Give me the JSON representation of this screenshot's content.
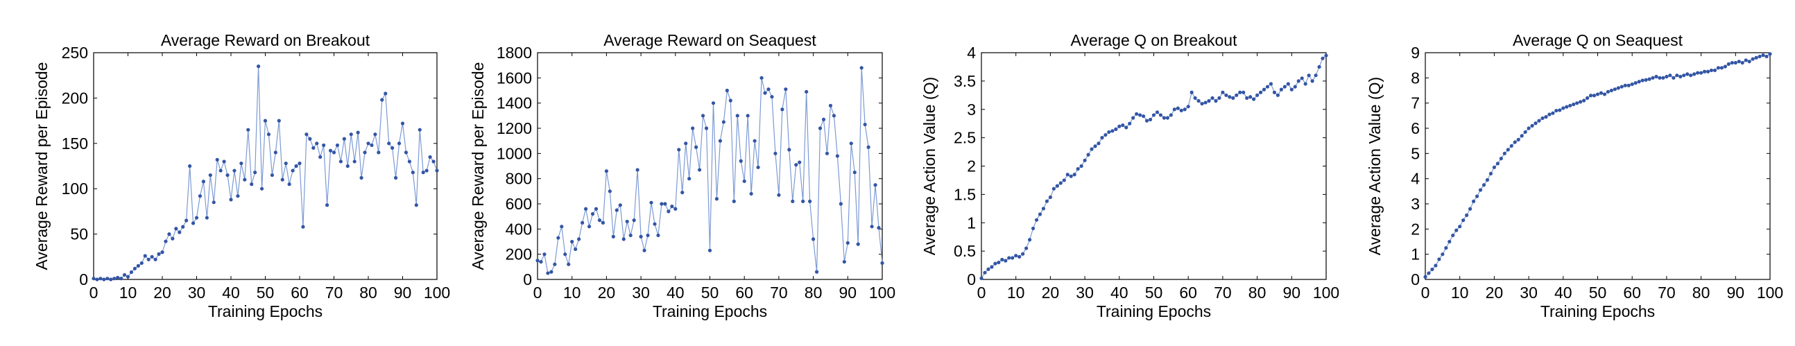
{
  "chart_data": [
    {
      "type": "line",
      "title": "Average Reward on Breakout",
      "xlabel": "Training Epochs",
      "ylabel": "Average Reward per Episode",
      "xlim": [
        0,
        100
      ],
      "ylim": [
        0,
        250
      ],
      "xticks": [
        0,
        10,
        20,
        30,
        40,
        50,
        60,
        70,
        80,
        90,
        100
      ],
      "yticks": [
        0,
        50,
        100,
        150,
        200,
        250
      ],
      "grid": false,
      "series": [
        {
          "color": "#3355a4",
          "x": [
            0,
            1,
            2,
            3,
            4,
            5,
            6,
            7,
            8,
            9,
            10,
            11,
            12,
            13,
            14,
            15,
            16,
            17,
            18,
            19,
            20,
            21,
            22,
            23,
            24,
            25,
            26,
            27,
            28,
            29,
            30,
            31,
            32,
            33,
            34,
            35,
            36,
            37,
            38,
            39,
            40,
            41,
            42,
            43,
            44,
            45,
            46,
            47,
            48,
            49,
            50,
            51,
            52,
            53,
            54,
            55,
            56,
            57,
            58,
            59,
            60,
            61,
            62,
            63,
            64,
            65,
            66,
            67,
            68,
            69,
            70,
            71,
            72,
            73,
            74,
            75,
            76,
            77,
            78,
            79,
            80,
            81,
            82,
            83,
            84,
            85,
            86,
            87,
            88,
            89,
            90,
            91,
            92,
            93,
            94,
            95,
            96,
            97,
            98,
            99,
            100
          ],
          "y": [
            1,
            0,
            1,
            0,
            1,
            0,
            1,
            2,
            1,
            5,
            3,
            8,
            12,
            15,
            18,
            26,
            22,
            25,
            22,
            28,
            30,
            42,
            50,
            45,
            56,
            52,
            58,
            65,
            125,
            62,
            68,
            92,
            108,
            68,
            115,
            85,
            132,
            120,
            130,
            115,
            88,
            120,
            92,
            128,
            110,
            165,
            105,
            118,
            235,
            100,
            175,
            160,
            115,
            140,
            175,
            110,
            128,
            105,
            120,
            125,
            128,
            58,
            160,
            155,
            145,
            150,
            135,
            148,
            82,
            142,
            140,
            148,
            130,
            155,
            125,
            160,
            130,
            162,
            112,
            140,
            150,
            148,
            160,
            140,
            198,
            205,
            150,
            145,
            112,
            150,
            172,
            140,
            130,
            118,
            82,
            165,
            118,
            120,
            135,
            130,
            120
          ]
        }
      ]
    },
    {
      "type": "line",
      "title": "Average Reward on Seaquest",
      "xlabel": "Training Epochs",
      "ylabel": "Average Reward per Episode",
      "xlim": [
        0,
        100
      ],
      "ylim": [
        0,
        1800
      ],
      "xticks": [
        0,
        10,
        20,
        30,
        40,
        50,
        60,
        70,
        80,
        90,
        100
      ],
      "yticks": [
        0,
        200,
        400,
        600,
        800,
        1000,
        1200,
        1400,
        1600,
        1800
      ],
      "grid": false,
      "series": [
        {
          "color": "#3355a4",
          "x": [
            0,
            1,
            2,
            3,
            4,
            5,
            6,
            7,
            8,
            9,
            10,
            11,
            12,
            13,
            14,
            15,
            16,
            17,
            18,
            19,
            20,
            21,
            22,
            23,
            24,
            25,
            26,
            27,
            28,
            29,
            30,
            31,
            32,
            33,
            34,
            35,
            36,
            37,
            38,
            39,
            40,
            41,
            42,
            43,
            44,
            45,
            46,
            47,
            48,
            49,
            50,
            51,
            52,
            53,
            54,
            55,
            56,
            57,
            58,
            59,
            60,
            61,
            62,
            63,
            64,
            65,
            66,
            67,
            68,
            69,
            70,
            71,
            72,
            73,
            74,
            75,
            76,
            77,
            78,
            79,
            80,
            81,
            82,
            83,
            84,
            85,
            86,
            87,
            88,
            89,
            90,
            91,
            92,
            93,
            94,
            95,
            96,
            97,
            98,
            99,
            100
          ],
          "y": [
            150,
            140,
            200,
            50,
            60,
            120,
            330,
            420,
            200,
            120,
            300,
            240,
            320,
            450,
            560,
            420,
            520,
            560,
            470,
            450,
            860,
            700,
            340,
            550,
            590,
            320,
            460,
            350,
            470,
            870,
            340,
            230,
            350,
            610,
            440,
            350,
            600,
            600,
            540,
            580,
            560,
            1030,
            690,
            1080,
            800,
            1200,
            1050,
            870,
            1300,
            1200,
            230,
            1400,
            640,
            1100,
            1250,
            1500,
            1420,
            620,
            1300,
            940,
            780,
            1300,
            680,
            1100,
            890,
            1600,
            1480,
            1510,
            1450,
            1000,
            670,
            1350,
            1510,
            1030,
            620,
            910,
            930,
            620,
            1490,
            620,
            320,
            60,
            1200,
            1270,
            1000,
            1380,
            1300,
            980,
            600,
            140,
            290,
            1080,
            850,
            280,
            1680,
            1230,
            1050,
            420,
            750,
            410,
            130
          ]
        }
      ]
    },
    {
      "type": "line",
      "title": "Average Q on Breakout",
      "xlabel": "Training Epochs",
      "ylabel": "Average Action Value (Q)",
      "xlim": [
        0,
        100
      ],
      "ylim": [
        0,
        4
      ],
      "xticks": [
        0,
        10,
        20,
        30,
        40,
        50,
        60,
        70,
        80,
        90,
        100
      ],
      "yticks": [
        0,
        0.5,
        1,
        1.5,
        2,
        2.5,
        3,
        3.5,
        4
      ],
      "grid": false,
      "series": [
        {
          "color": "#3355a4",
          "x": [
            0,
            1,
            2,
            3,
            4,
            5,
            6,
            7,
            8,
            9,
            10,
            11,
            12,
            13,
            14,
            15,
            16,
            17,
            18,
            19,
            20,
            21,
            22,
            23,
            24,
            25,
            26,
            27,
            28,
            29,
            30,
            31,
            32,
            33,
            34,
            35,
            36,
            37,
            38,
            39,
            40,
            41,
            42,
            43,
            44,
            45,
            46,
            47,
            48,
            49,
            50,
            51,
            52,
            53,
            54,
            55,
            56,
            57,
            58,
            59,
            60,
            61,
            62,
            63,
            64,
            65,
            66,
            67,
            68,
            69,
            70,
            71,
            72,
            73,
            74,
            75,
            76,
            77,
            78,
            79,
            80,
            81,
            82,
            83,
            84,
            85,
            86,
            87,
            88,
            89,
            90,
            91,
            92,
            93,
            94,
            95,
            96,
            97,
            98,
            99,
            100
          ],
          "y": [
            0.02,
            0.12,
            0.18,
            0.22,
            0.28,
            0.3,
            0.35,
            0.33,
            0.38,
            0.38,
            0.42,
            0.4,
            0.45,
            0.55,
            0.7,
            0.9,
            1.05,
            1.15,
            1.25,
            1.38,
            1.45,
            1.6,
            1.65,
            1.7,
            1.75,
            1.85,
            1.82,
            1.85,
            1.95,
            2.0,
            2.1,
            2.2,
            2.3,
            2.35,
            2.4,
            2.5,
            2.55,
            2.6,
            2.62,
            2.65,
            2.7,
            2.72,
            2.68,
            2.75,
            2.85,
            2.92,
            2.9,
            2.88,
            2.8,
            2.82,
            2.9,
            2.95,
            2.9,
            2.85,
            2.85,
            2.9,
            3.0,
            3.02,
            2.98,
            3.0,
            3.05,
            3.3,
            3.2,
            3.15,
            3.1,
            3.12,
            3.15,
            3.2,
            3.15,
            3.2,
            3.3,
            3.25,
            3.22,
            3.2,
            3.25,
            3.3,
            3.3,
            3.2,
            3.22,
            3.18,
            3.25,
            3.3,
            3.35,
            3.4,
            3.45,
            3.3,
            3.25,
            3.35,
            3.4,
            3.45,
            3.35,
            3.4,
            3.5,
            3.55,
            3.45,
            3.6,
            3.5,
            3.6,
            3.75,
            3.9,
            3.95
          ]
        }
      ]
    },
    {
      "type": "line",
      "title": "Average Q on Seaquest",
      "xlabel": "Training Epochs",
      "ylabel": "Average Action Value (Q)",
      "xlim": [
        0,
        100
      ],
      "ylim": [
        0,
        9
      ],
      "xticks": [
        0,
        10,
        20,
        30,
        40,
        50,
        60,
        70,
        80,
        90,
        100
      ],
      "yticks": [
        0,
        1,
        2,
        3,
        4,
        5,
        6,
        7,
        8,
        9
      ],
      "grid": false,
      "series": [
        {
          "color": "#3355a4",
          "x": [
            0,
            1,
            2,
            3,
            4,
            5,
            6,
            7,
            8,
            9,
            10,
            11,
            12,
            13,
            14,
            15,
            16,
            17,
            18,
            19,
            20,
            21,
            22,
            23,
            24,
            25,
            26,
            27,
            28,
            29,
            30,
            31,
            32,
            33,
            34,
            35,
            36,
            37,
            38,
            39,
            40,
            41,
            42,
            43,
            44,
            45,
            46,
            47,
            48,
            49,
            50,
            51,
            52,
            53,
            54,
            55,
            56,
            57,
            58,
            59,
            60,
            61,
            62,
            63,
            64,
            65,
            66,
            67,
            68,
            69,
            70,
            71,
            72,
            73,
            74,
            75,
            76,
            77,
            78,
            79,
            80,
            81,
            82,
            83,
            84,
            85,
            86,
            87,
            88,
            89,
            90,
            91,
            92,
            93,
            94,
            95,
            96,
            97,
            98,
            99,
            100
          ],
          "y": [
            0.1,
            0.25,
            0.4,
            0.55,
            0.8,
            1.0,
            1.25,
            1.5,
            1.75,
            1.95,
            2.1,
            2.35,
            2.55,
            2.8,
            3.1,
            3.3,
            3.55,
            3.75,
            3.95,
            4.2,
            4.45,
            4.6,
            4.8,
            5.0,
            5.15,
            5.3,
            5.45,
            5.55,
            5.7,
            5.85,
            6.0,
            6.1,
            6.2,
            6.3,
            6.4,
            6.45,
            6.55,
            6.6,
            6.7,
            6.72,
            6.8,
            6.85,
            6.9,
            6.95,
            7.0,
            7.05,
            7.1,
            7.2,
            7.3,
            7.3,
            7.35,
            7.4,
            7.35,
            7.45,
            7.5,
            7.55,
            7.6,
            7.65,
            7.7,
            7.7,
            7.75,
            7.8,
            7.85,
            7.9,
            7.92,
            7.95,
            8.0,
            8.05,
            8.0,
            8.0,
            8.05,
            8.1,
            8.0,
            8.1,
            8.05,
            8.1,
            8.15,
            8.1,
            8.15,
            8.2,
            8.2,
            8.25,
            8.25,
            8.3,
            8.3,
            8.4,
            8.4,
            8.45,
            8.55,
            8.6,
            8.6,
            8.65,
            8.6,
            8.7,
            8.65,
            8.75,
            8.8,
            8.85,
            8.9,
            8.85,
            8.95
          ]
        }
      ]
    }
  ]
}
